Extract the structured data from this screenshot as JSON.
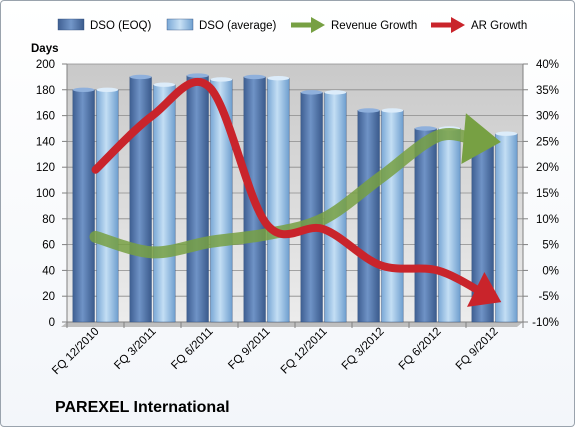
{
  "chart_data": {
    "type": "bar",
    "title": "PAREXEL International",
    "ylabel": "Days",
    "ylim": [
      0,
      200
    ],
    "y_ticks": [
      0,
      20,
      40,
      60,
      80,
      100,
      120,
      140,
      160,
      180,
      200
    ],
    "y2lim": [
      -10,
      40
    ],
    "y2_ticks": [
      "-10%",
      "-5%",
      "0%",
      "5%",
      "10%",
      "15%",
      "20%",
      "25%",
      "30%",
      "35%",
      "40%"
    ],
    "y2_tick_values": [
      -10,
      -5,
      0,
      5,
      10,
      15,
      20,
      25,
      30,
      35,
      40
    ],
    "categories": [
      "FQ 12/2010",
      "FQ 3/2011",
      "FQ 6/2011",
      "FQ 9/2011",
      "FQ 12/2011",
      "FQ 3/2012",
      "FQ 6/2012",
      "FQ 9/2012"
    ],
    "series": [
      {
        "name": "DSO (EOQ)",
        "kind": "bar",
        "axis": "left",
        "color": "#5b7fb5",
        "values": [
          180,
          190,
          191,
          190,
          178,
          164,
          150,
          138
        ]
      },
      {
        "name": "DSO (average)",
        "kind": "bar",
        "axis": "left",
        "color": "#9cc3e6",
        "values": [
          180,
          184,
          188,
          189,
          178,
          164,
          150,
          146
        ]
      },
      {
        "name": "Revenue Growth",
        "kind": "line-arrow",
        "axis": "right",
        "color": "#77a043",
        "values": [
          6.5,
          3.5,
          5.5,
          7,
          10,
          18,
          26,
          25
        ]
      },
      {
        "name": "AR Growth",
        "kind": "line-arrow",
        "axis": "right",
        "color": "#c9242b",
        "values": [
          19.5,
          30,
          35.5,
          9,
          8,
          1,
          0,
          -5.5
        ]
      }
    ],
    "legend_position": "top",
    "grid": true
  }
}
